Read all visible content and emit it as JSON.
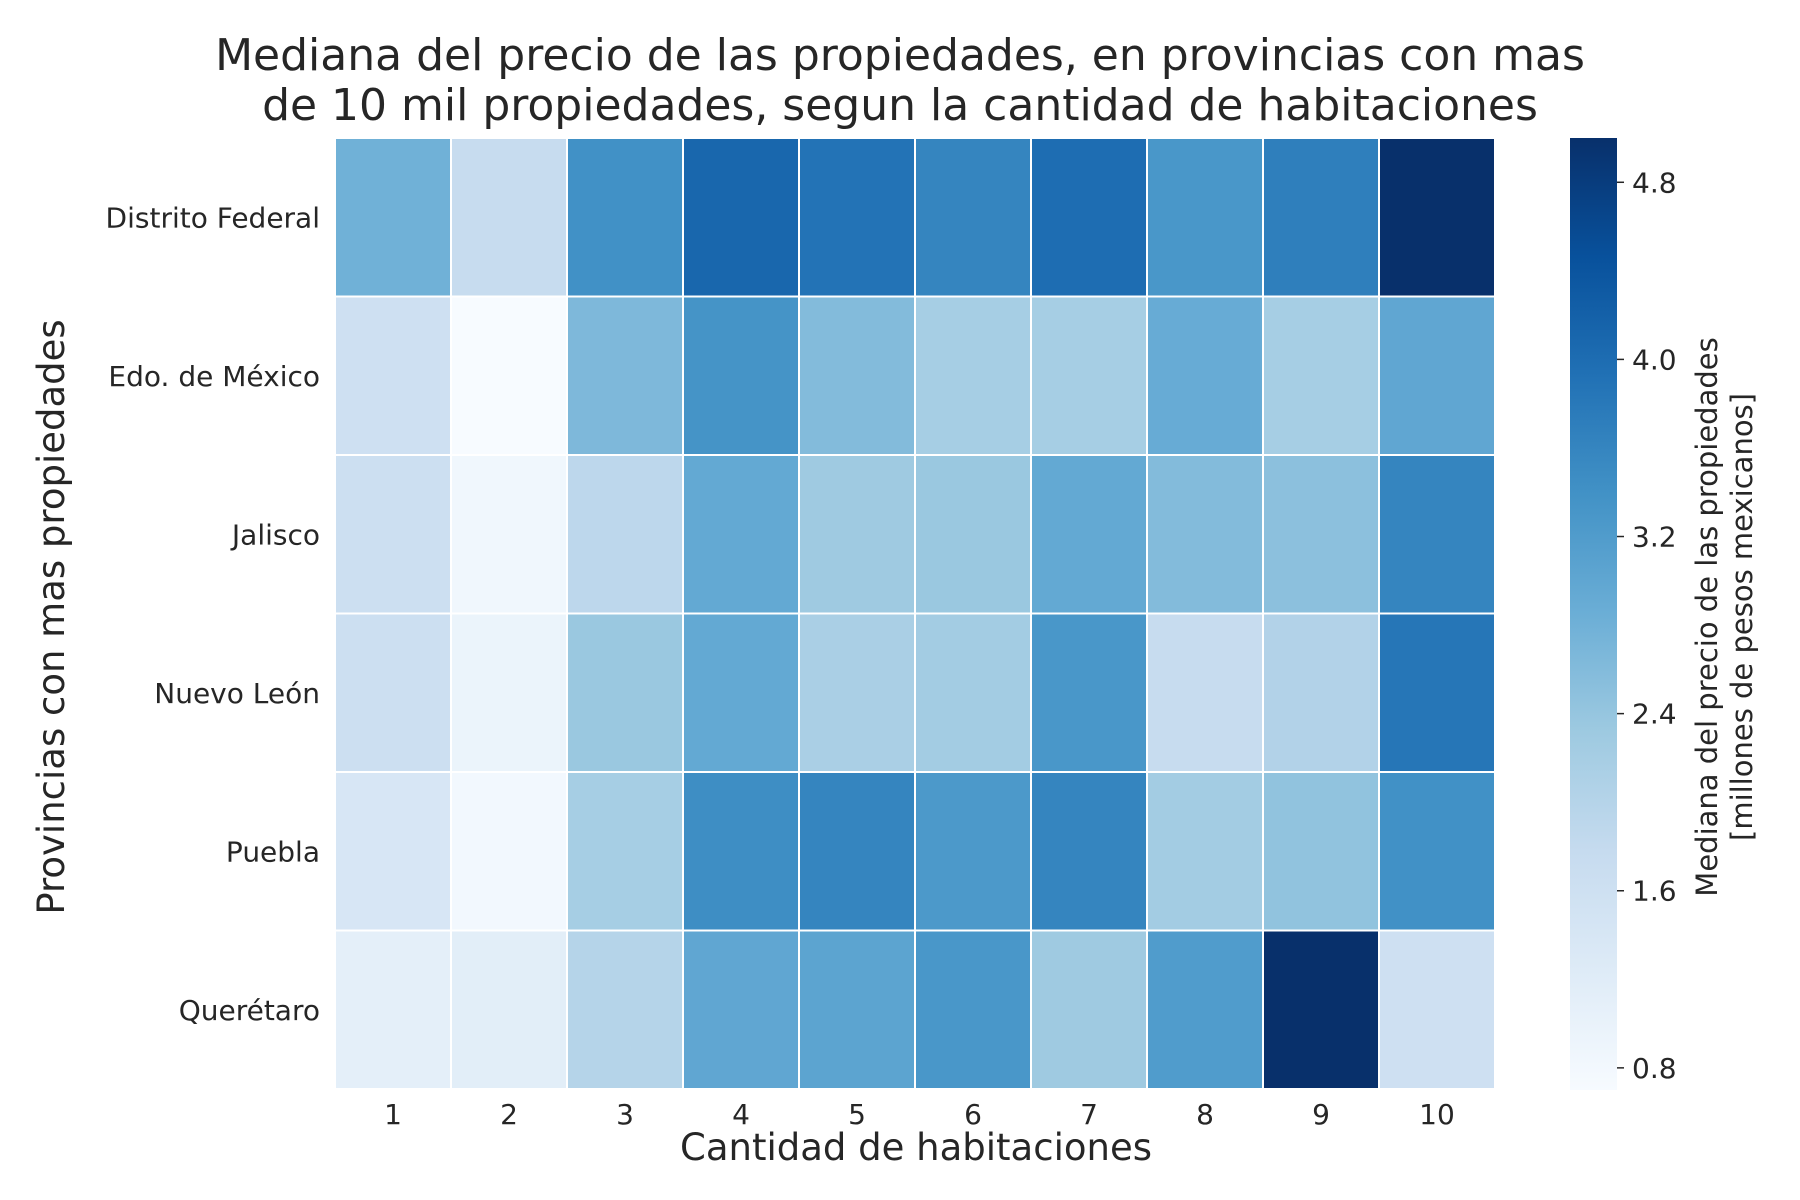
{
  "chart_data": {
    "type": "heatmap",
    "title": "Mediana del precio de las propiedades, en provincias con mas\nde 10 mil propiedades, segun la cantidad de habitaciones",
    "title_lines": [
      "Mediana del precio de las propiedades, en provincias con mas",
      "de 10 mil propiedades, segun la cantidad de habitaciones"
    ],
    "xlabel": "Cantidad de habitaciones",
    "ylabel": "Provincias con mas propiedades",
    "x_categories": [
      "1",
      "2",
      "3",
      "4",
      "5",
      "6",
      "7",
      "8",
      "9",
      "10"
    ],
    "y_categories": [
      "Distrito Federal",
      "Edo. de México",
      "Jalisco",
      "Nuevo León",
      "Puebla",
      "Querétaro"
    ],
    "values": [
      [
        2.8,
        1.75,
        3.4,
        4.1,
        3.9,
        3.6,
        4.0,
        3.3,
        3.7,
        5.0
      ],
      [
        1.6,
        0.7,
        2.65,
        3.35,
        2.6,
        2.2,
        2.2,
        2.9,
        2.2,
        3.0
      ],
      [
        1.65,
        0.85,
        1.9,
        2.95,
        2.3,
        2.35,
        2.95,
        2.6,
        2.5,
        3.6
      ],
      [
        1.65,
        0.95,
        2.35,
        2.95,
        2.15,
        2.25,
        3.3,
        1.75,
        2.05,
        3.85
      ],
      [
        1.4,
        0.8,
        2.2,
        3.45,
        3.6,
        3.25,
        3.6,
        2.25,
        2.45,
        3.4
      ],
      [
        1.1,
        1.15,
        2.0,
        3.0,
        3.05,
        3.3,
        2.3,
        3.2,
        5.0,
        1.6
      ]
    ],
    "colormap": "Blues",
    "vmin": 0.7,
    "vmax": 5.0,
    "colorbar": {
      "label_lines": [
        "Mediana del precio de las propiedades",
        "[millones de pesos mexicanos]"
      ],
      "ticks": [
        0.8,
        1.6,
        2.4,
        3.2,
        4.0,
        4.8
      ],
      "tick_labels": [
        "0.8",
        "1.6",
        "2.4",
        "3.2",
        "4.0",
        "4.8"
      ]
    },
    "grid": false,
    "cell_borders": "#ffffff"
  }
}
